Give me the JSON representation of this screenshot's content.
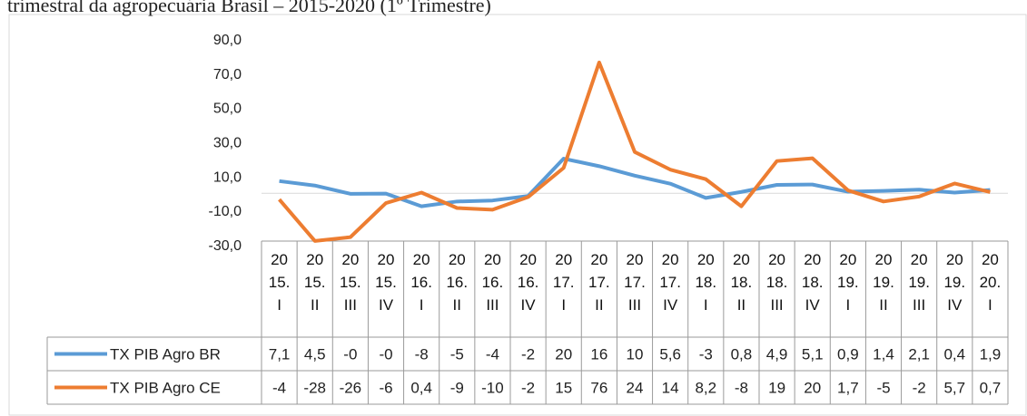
{
  "chart_data": {
    "type": "line",
    "title": "trimestral da agropecuária Brasil – 2015-2020 (1º Trimestre)",
    "categories": [
      "2015.I",
      "2015.II",
      "2015.III",
      "2015.IV",
      "2016.I",
      "2016.II",
      "2016.III",
      "2016.IV",
      "2017.I",
      "2017.II",
      "2017.III",
      "2017.IV",
      "2018.I",
      "2018.II",
      "2018.III",
      "2018.IV",
      "2019.I",
      "2019.II",
      "2019.III",
      "2019.IV",
      "2020.I"
    ],
    "series": [
      {
        "name": "TX PIB Agro BR",
        "color": "#5b9bd5",
        "values": [
          7.1,
          4.5,
          -0.3,
          -0.2,
          -7.6,
          -4.8,
          -4.2,
          -1.6,
          20.2,
          15.8,
          10.3,
          5.6,
          -2.7,
          0.8,
          4.9,
          5.1,
          0.9,
          1.4,
          2.1,
          0.4,
          1.9
        ],
        "value_labels": [
          "7,1",
          "4,5",
          "-0",
          "-0",
          "-8",
          "-5",
          "-4",
          "-2",
          "20",
          "16",
          "10",
          "5,6",
          "-3",
          "0,8",
          "4,9",
          "5,1",
          "0,9",
          "1,4",
          "2,1",
          "0,4",
          "1,9"
        ]
      },
      {
        "name": "TX PIB Agro CE",
        "color": "#ed7d31",
        "values": [
          -3.6,
          -27.8,
          -25.6,
          -5.7,
          0.4,
          -8.6,
          -9.6,
          -2.2,
          14.8,
          76.3,
          24.1,
          13.8,
          8.2,
          -7.6,
          18.8,
          20.4,
          1.7,
          -4.8,
          -1.9,
          5.7,
          0.7
        ],
        "value_labels": [
          "-4",
          "-28",
          "-26",
          "-6",
          "0,4",
          "-9",
          "-10",
          "-2",
          "15",
          "76",
          "24",
          "14",
          "8,2",
          "-8",
          "19",
          "20",
          "1,7",
          "-5",
          "-2",
          "5,7",
          "0,7"
        ]
      }
    ],
    "ylim": [
      -30,
      90
    ],
    "yticks": [
      {
        "value": -30,
        "label": "-30,0"
      },
      {
        "value": -10,
        "label": "-10,0"
      },
      {
        "value": 10,
        "label": "10,0"
      },
      {
        "value": 30,
        "label": "30,0"
      },
      {
        "value": 50,
        "label": "50,0"
      },
      {
        "value": 70,
        "label": "70,0"
      },
      {
        "value": 90,
        "label": "90,0"
      }
    ]
  }
}
